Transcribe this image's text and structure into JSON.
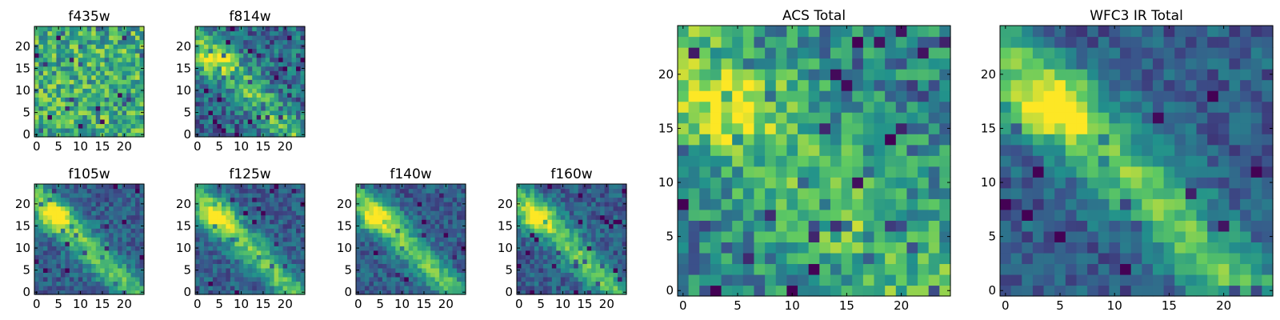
{
  "chart_data": [
    {
      "type": "heatmap",
      "title": "f435w",
      "xticks": [
        0,
        5,
        10,
        15,
        20
      ],
      "yticks": [
        0,
        5,
        10,
        15,
        20
      ],
      "grid_size": 25,
      "pattern": "noise",
      "seed": 11
    },
    {
      "type": "heatmap",
      "title": "f814w",
      "xticks": [
        0,
        5,
        10,
        15,
        20
      ],
      "yticks": [
        0,
        5,
        10,
        15,
        20
      ],
      "grid_size": 25,
      "pattern": "galaxy-faint",
      "seed": 23
    },
    {
      "type": "heatmap",
      "title": "f105w",
      "xticks": [
        0,
        5,
        10,
        15,
        20
      ],
      "yticks": [
        0,
        5,
        10,
        15,
        20
      ],
      "grid_size": 25,
      "pattern": "galaxy",
      "seed": 37
    },
    {
      "type": "heatmap",
      "title": "f125w",
      "xticks": [
        0,
        5,
        10,
        15,
        20
      ],
      "yticks": [
        0,
        5,
        10,
        15,
        20
      ],
      "grid_size": 25,
      "pattern": "galaxy",
      "seed": 41
    },
    {
      "type": "heatmap",
      "title": "f140w",
      "xticks": [
        0,
        5,
        10,
        15,
        20
      ],
      "yticks": [
        0,
        5,
        10,
        15,
        20
      ],
      "grid_size": 25,
      "pattern": "galaxy",
      "seed": 53
    },
    {
      "type": "heatmap",
      "title": "f160w",
      "xticks": [
        0,
        5,
        10,
        15,
        20
      ],
      "yticks": [
        0,
        5,
        10,
        15,
        20
      ],
      "grid_size": 25,
      "pattern": "galaxy",
      "seed": 67
    },
    {
      "type": "heatmap",
      "title": "ACS Total",
      "xticks": [
        0,
        5,
        10,
        15,
        20
      ],
      "yticks": [
        0,
        5,
        10,
        15,
        20
      ],
      "grid_size": 25,
      "pattern": "acs",
      "seed": 79
    },
    {
      "type": "heatmap",
      "title": "WFC3 IR Total",
      "xticks": [
        0,
        5,
        10,
        15,
        20
      ],
      "yticks": [
        0,
        5,
        10,
        15,
        20
      ],
      "grid_size": 25,
      "pattern": "galaxy",
      "seed": 83
    }
  ],
  "colormap": [
    "#440154",
    "#3b528b",
    "#21918c",
    "#5ec962",
    "#fde725"
  ]
}
